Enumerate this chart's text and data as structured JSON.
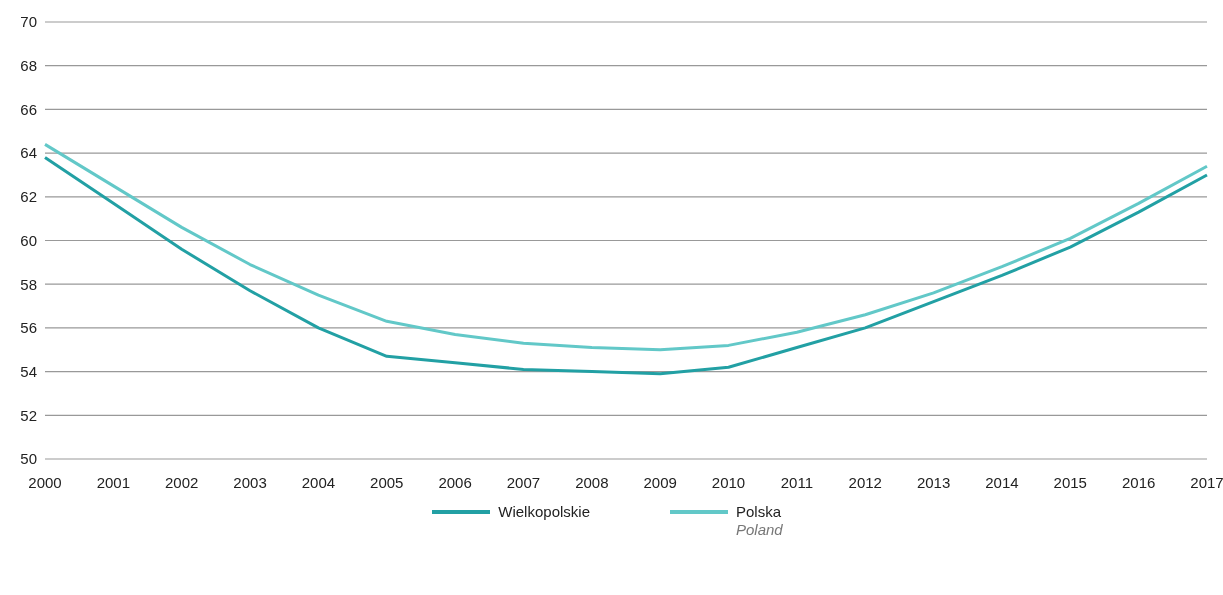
{
  "chart_data": {
    "type": "line",
    "categories": [
      "2000",
      "2001",
      "2002",
      "2003",
      "2004",
      "2005",
      "2006",
      "2007",
      "2008",
      "2009",
      "2010",
      "2011",
      "2012",
      "2013",
      "2014",
      "2015",
      "2016",
      "2017"
    ],
    "series": [
      {
        "name": "Wielkopolskie",
        "color": "#22a0a4",
        "values": [
          63.8,
          61.7,
          59.6,
          57.7,
          56.0,
          54.7,
          54.4,
          54.1,
          54.0,
          53.9,
          54.2,
          55.1,
          56.0,
          57.2,
          58.4,
          59.7,
          61.3,
          63.0
        ]
      },
      {
        "name": "Polska\nPoland",
        "color": "#62c8c8",
        "values": [
          64.4,
          62.5,
          60.6,
          58.9,
          57.5,
          56.3,
          55.7,
          55.3,
          55.1,
          55.0,
          55.2,
          55.8,
          56.6,
          57.6,
          58.8,
          60.1,
          61.7,
          63.4
        ]
      }
    ],
    "ylim": [
      50,
      70
    ],
    "yticks": [
      50,
      52,
      54,
      56,
      58,
      60,
      62,
      64,
      66,
      68,
      70
    ],
    "grid": "y",
    "legend": "bottom",
    "marker": "none",
    "line_style": "solid"
  }
}
